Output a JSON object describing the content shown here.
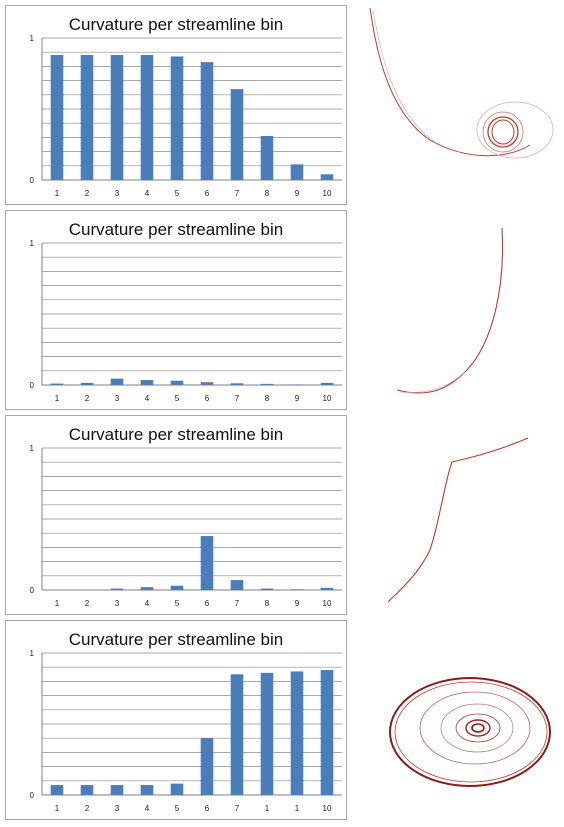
{
  "chart_data": [
    {
      "type": "bar",
      "title": "Curvature per streamline bin",
      "categories": [
        "1",
        "2",
        "3",
        "4",
        "5",
        "6",
        "7",
        "8",
        "9",
        "10"
      ],
      "values": [
        0.88,
        0.88,
        0.88,
        0.88,
        0.87,
        0.83,
        0.64,
        0.31,
        0.11,
        0.04
      ],
      "yticks": [
        "0",
        "1"
      ],
      "ylim": [
        0,
        1
      ],
      "grid": true,
      "color": "#4a7ebb"
    },
    {
      "type": "bar",
      "title": "Curvature per streamline bin",
      "categories": [
        "1",
        "2",
        "3",
        "4",
        "5",
        "6",
        "7",
        "8",
        "9",
        "10"
      ],
      "values": [
        0.01,
        0.015,
        0.045,
        0.035,
        0.03,
        0.02,
        0.012,
        0.008,
        0.004,
        0.015
      ],
      "yticks": [
        "0",
        "1"
      ],
      "ylim": [
        0,
        1
      ],
      "grid": true,
      "color": "#4a7ebb"
    },
    {
      "type": "bar",
      "title": "Curvature per streamline bin",
      "categories": [
        "1",
        "2",
        "3",
        "4",
        "5",
        "6",
        "7",
        "8",
        "9",
        "10"
      ],
      "values": [
        0.0,
        0.0,
        0.01,
        0.02,
        0.03,
        0.38,
        0.07,
        0.01,
        0.005,
        0.015
      ],
      "yticks": [
        "0",
        "1"
      ],
      "ylim": [
        0,
        1
      ],
      "grid": true,
      "color": "#4a7ebb"
    },
    {
      "type": "bar",
      "title": "Curvature per streamline bin",
      "categories": [
        "1",
        "2",
        "3",
        "4",
        "5",
        "6",
        "7",
        "1",
        "1",
        "10"
      ],
      "values": [
        0.07,
        0.07,
        0.07,
        0.07,
        0.08,
        0.4,
        0.85,
        0.86,
        0.87,
        0.88
      ],
      "yticks": [
        "0",
        "1"
      ],
      "ylim": [
        0,
        1
      ],
      "grid": true,
      "color": "#4a7ebb"
    }
  ],
  "streamline_color": "#c0392b"
}
